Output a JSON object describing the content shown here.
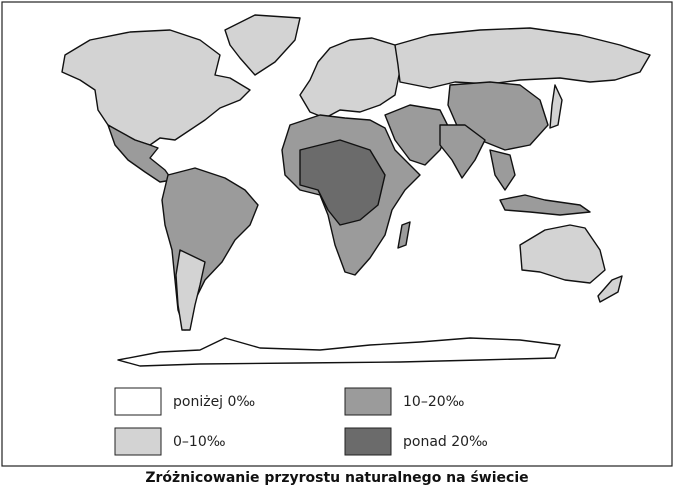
{
  "legend": [
    {
      "label": "poniżej 0‰",
      "color": "#ffffff"
    },
    {
      "label": "0–10‰",
      "color": "#d3d3d3"
    },
    {
      "label": "10–20‰",
      "color": "#9b9b9b"
    },
    {
      "label": "ponad 20‰",
      "color": "#6b6b6b"
    }
  ],
  "caption": "Zróżnicowanie przyrostu naturalnego na świecie"
}
